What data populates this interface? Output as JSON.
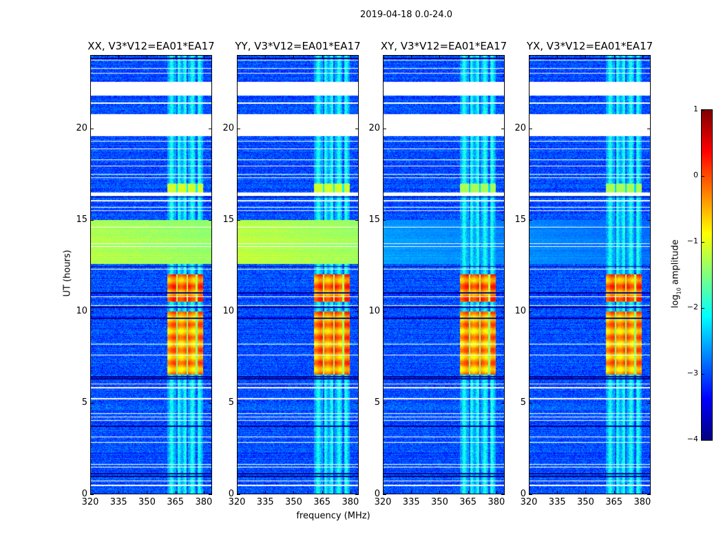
{
  "chart_data": {
    "type": "heatmap",
    "title": "2019-04-18 0.0-24.0",
    "xlabel": "frequency (MHz)",
    "ylabel": "UT (hours)",
    "colorbar_label_main": "log",
    "colorbar_label_sub": "10",
    "colorbar_label_rest": " amplitude",
    "colormap": "jet",
    "zlim": [
      -4,
      1
    ],
    "colorbar_ticks": [
      1,
      0,
      -1,
      -2,
      -3,
      -4
    ],
    "colorbar_tick_labels": [
      "1",
      "0",
      "−1",
      "−2",
      "−3",
      "−4"
    ],
    "xlim": [
      320,
      384.4
    ],
    "ylim": [
      0,
      24
    ],
    "xticks": [
      320,
      335,
      350,
      365,
      380
    ],
    "xtick_labels": [
      "320",
      "335",
      "350",
      "365",
      "380"
    ],
    "yticks": [
      0,
      5,
      10,
      15,
      20
    ],
    "ytick_labels": [
      "0",
      "5",
      "10",
      "15",
      "20"
    ],
    "panels": [
      {
        "title": "XX, V3*V12=EA01*EA17",
        "pol": "XX"
      },
      {
        "title": "YY, V3*V12=EA01*EA17",
        "pol": "YY"
      },
      {
        "title": "XY, V3*V12=EA01*EA17",
        "pol": "XY"
      },
      {
        "title": "YX, V3*V12=EA01*EA17",
        "pol": "YX"
      }
    ],
    "background_level": -3.0,
    "flagged_intervals_hours": [
      [
        19.6,
        20.8
      ],
      [
        21.8,
        22.55
      ],
      [
        16.3,
        16.5
      ]
    ],
    "flagged_lines_hours": [
      23.75,
      23.3,
      23.05,
      21.4,
      19.3,
      18.9,
      18.3,
      17.95,
      17.5,
      17.3,
      16.05,
      15.7,
      15.5,
      14.6,
      13.7,
      13.55,
      12.3,
      10.8,
      10.3,
      8.2,
      7.6,
      6.0,
      5.8,
      5.2,
      4.4,
      4.2,
      4.0,
      3.1,
      2.8,
      1.6,
      1.45,
      0.7,
      0.45
    ],
    "dark_lines_hours": [
      23.85,
      16.25,
      12.45,
      11.0,
      10.2,
      9.6,
      6.4,
      6.3,
      3.7,
      1.1,
      0.95
    ],
    "rfi_band": {
      "freq": [
        361,
        380
      ],
      "gaps": [
        366,
        371.5,
        376.5
      ],
      "level": -2.3
    },
    "events": [
      {
        "time": [
          6.5,
          10.0
        ],
        "freq": [
          361,
          380
        ],
        "levels": {
          "XX": -0.4,
          "YY": -0.3,
          "XY": -0.4,
          "YX": -0.4
        },
        "striped": true
      },
      {
        "time": [
          10.5,
          12.0
        ],
        "freq": [
          361,
          380
        ],
        "levels": {
          "XX": -0.2,
          "YY": -0.2,
          "XY": -0.2,
          "YX": -0.2
        },
        "striped": true
      },
      {
        "time": [
          16.5,
          17.0
        ],
        "freq": [
          361,
          380
        ],
        "levels": {
          "XX": -1.1,
          "YY": -1.1,
          "XY": -1.3,
          "YX": -1.3
        },
        "striped": false
      },
      {
        "time": [
          12.6,
          15.0
        ],
        "freq": [
          320,
          384.4
        ],
        "levels": {
          "XX": -1.25,
          "YY": -1.2,
          "XY": -2.6,
          "YX": -2.7
        },
        "striped": false
      }
    ]
  }
}
